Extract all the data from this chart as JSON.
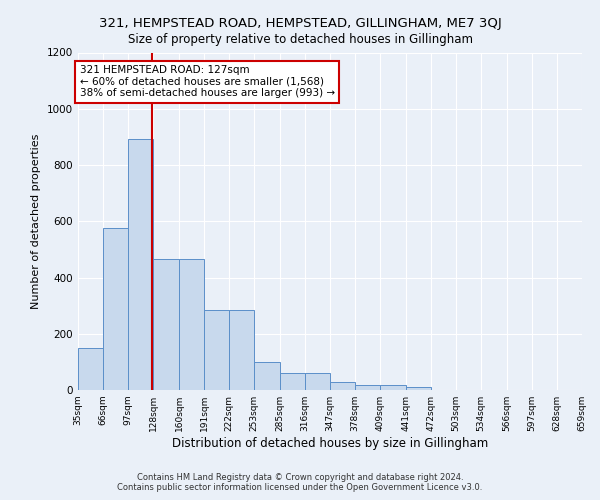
{
  "title1": "321, HEMPSTEAD ROAD, HEMPSTEAD, GILLINGHAM, ME7 3QJ",
  "title2": "Size of property relative to detached houses in Gillingham",
  "xlabel": "Distribution of detached houses by size in Gillingham",
  "ylabel": "Number of detached properties",
  "bar_edges": [
    35,
    66,
    97,
    128,
    160,
    191,
    222,
    253,
    285,
    316,
    347,
    378,
    409,
    441,
    472,
    503,
    534,
    566,
    597,
    628,
    659
  ],
  "bar_heights": [
    150,
    575,
    893,
    465,
    465,
    285,
    285,
    100,
    62,
    62,
    28,
    18,
    18,
    10,
    0,
    0,
    0,
    0,
    0,
    0
  ],
  "bar_color": "#c8d9ed",
  "bar_edge_color": "#5b8fc9",
  "property_sqm": 127,
  "property_line_color": "#cc0000",
  "annotation_text": "321 HEMPSTEAD ROAD: 127sqm\n← 60% of detached houses are smaller (1,568)\n38% of semi-detached houses are larger (993) →",
  "annotation_box_color": "#ffffff",
  "annotation_box_edge": "#cc0000",
  "ylim": [
    0,
    1200
  ],
  "yticks": [
    0,
    200,
    400,
    600,
    800,
    1000,
    1200
  ],
  "tick_labels": [
    "35sqm",
    "66sqm",
    "97sqm",
    "128sqm",
    "160sqm",
    "191sqm",
    "222sqm",
    "253sqm",
    "285sqm",
    "316sqm",
    "347sqm",
    "378sqm",
    "409sqm",
    "441sqm",
    "472sqm",
    "503sqm",
    "534sqm",
    "566sqm",
    "597sqm",
    "628sqm",
    "659sqm"
  ],
  "footer1": "Contains HM Land Registry data © Crown copyright and database right 2024.",
  "footer2": "Contains public sector information licensed under the Open Government Licence v3.0.",
  "bg_color": "#eaf0f8",
  "plot_bg_color": "#eaf0f8",
  "grid_color": "#ffffff",
  "title1_fontsize": 9.5,
  "title2_fontsize": 8.5,
  "xlabel_fontsize": 8.5,
  "ylabel_fontsize": 8,
  "annotation_fontsize": 7.5,
  "footer_fontsize": 6
}
